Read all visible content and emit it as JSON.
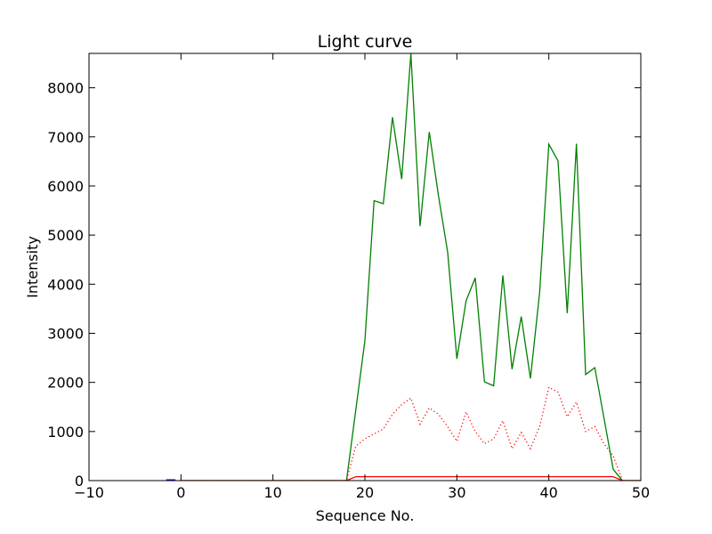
{
  "chart_data": {
    "type": "line",
    "title": "Light curve",
    "xlabel": "Sequence No.",
    "ylabel": "Intensity",
    "xlim": [
      -10,
      50
    ],
    "ylim": [
      0,
      8700
    ],
    "xticks": [
      -10,
      0,
      10,
      20,
      30,
      40,
      50
    ],
    "yticks": [
      0,
      1000,
      2000,
      3000,
      4000,
      5000,
      6000,
      7000,
      8000
    ],
    "grid": false,
    "series": [
      {
        "color": "#008000",
        "style": "solid",
        "x": [
          0,
          18,
          20,
          21,
          22,
          23,
          24,
          25,
          26,
          27,
          28,
          29,
          30,
          31,
          32,
          33,
          34,
          35,
          36,
          37,
          38,
          39,
          40,
          41,
          42,
          43,
          44,
          45,
          46,
          47,
          48,
          50
        ],
        "y": [
          0,
          0,
          2850,
          5700,
          5640,
          7400,
          6140,
          8700,
          5180,
          7100,
          5800,
          4650,
          2480,
          3660,
          4130,
          2010,
          1930,
          4180,
          2270,
          3340,
          2080,
          3830,
          6850,
          6510,
          3410,
          6860,
          2160,
          2300,
          1270,
          230,
          0,
          0
        ]
      },
      {
        "color": "#ff0000",
        "style": "dotted",
        "x": [
          0,
          18,
          19,
          20,
          21,
          22,
          23,
          24,
          25,
          26,
          27,
          28,
          29,
          30,
          31,
          32,
          33,
          34,
          35,
          36,
          37,
          38,
          39,
          40,
          41,
          42,
          43,
          44,
          45,
          46,
          47,
          48,
          50
        ],
        "y": [
          0,
          0,
          700,
          850,
          950,
          1050,
          1350,
          1550,
          1680,
          1150,
          1480,
          1350,
          1100,
          800,
          1400,
          1000,
          750,
          850,
          1220,
          650,
          980,
          650,
          1100,
          1900,
          1800,
          1300,
          1600,
          1000,
          1100,
          750,
          500,
          0,
          0
        ]
      },
      {
        "color": "#ff0000",
        "style": "solid",
        "x": [
          0,
          18,
          19,
          47,
          48,
          50
        ],
        "y": [
          0,
          0,
          80,
          80,
          0,
          0
        ]
      },
      {
        "color": "#0000ff",
        "style": "solid",
        "x": [
          -1.6,
          -0.6
        ],
        "y": [
          0,
          0
        ]
      }
    ]
  }
}
